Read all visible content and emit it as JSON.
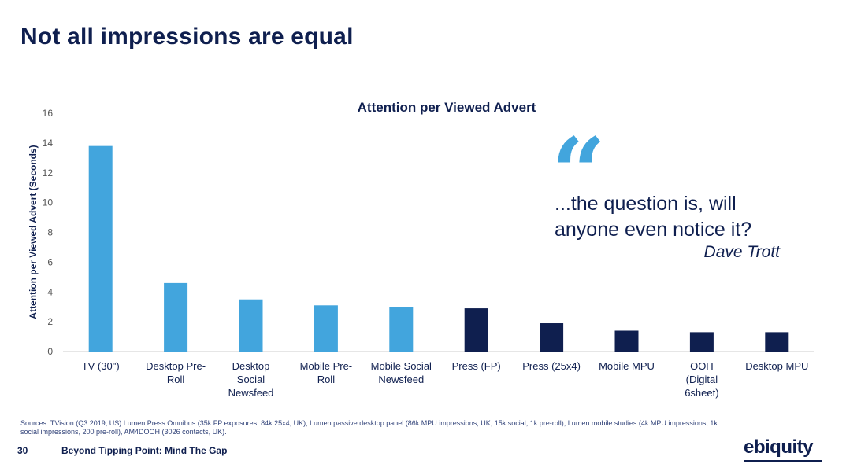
{
  "slide": {
    "title": "Not all impressions are equal",
    "page_number": "30",
    "footer_title": "Beyond Tipping Point: Mind The Gap",
    "logo_text": "ebiquity",
    "sources": "Sources: TVision (Q3 2019, US) Lumen Press Omnibus (35k FP exposures, 84k 25x4, UK), Lumen passive desktop panel (86k MPU impressions, UK, 15k social, 1k pre-roll), Lumen mobile studies (4k MPU impressions, 1k social impressions, 200 pre-roll), AM4DOOH (3026 contacts, UK)."
  },
  "quote": {
    "mark": "“",
    "text": "...the question is, will anyone even notice it?",
    "author": "Dave Trott"
  },
  "colors": {
    "light_blue": "#42a5dd",
    "navy": "#0f1f4f",
    "axis": "#cccccc",
    "text": "#0f1f4f"
  },
  "chart_data": {
    "type": "bar",
    "title": "Attention per Viewed Advert",
    "xlabel": "",
    "ylabel": "Attention per Viewed Advert (Seconds)",
    "ylim": [
      0,
      16
    ],
    "yticks": [
      0,
      2,
      4,
      6,
      8,
      10,
      12,
      14,
      16
    ],
    "grid": false,
    "categories": [
      [
        "TV (30\")"
      ],
      [
        "Desktop Pre-",
        "Roll"
      ],
      [
        "Desktop",
        "Social",
        "Newsfeed"
      ],
      [
        "Mobile Pre-",
        "Roll"
      ],
      [
        "Mobile Social",
        "Newsfeed"
      ],
      [
        "Press (FP)"
      ],
      [
        "Press (25x4)"
      ],
      [
        "Mobile MPU"
      ],
      [
        "OOH",
        "(Digital",
        "6sheet)"
      ],
      [
        "Desktop MPU"
      ]
    ],
    "values": [
      13.8,
      4.6,
      3.5,
      3.1,
      3.0,
      2.9,
      1.9,
      1.4,
      1.3,
      1.3
    ],
    "bar_colors": [
      "light_blue",
      "light_blue",
      "light_blue",
      "light_blue",
      "light_blue",
      "navy",
      "navy",
      "navy",
      "navy",
      "navy"
    ]
  }
}
